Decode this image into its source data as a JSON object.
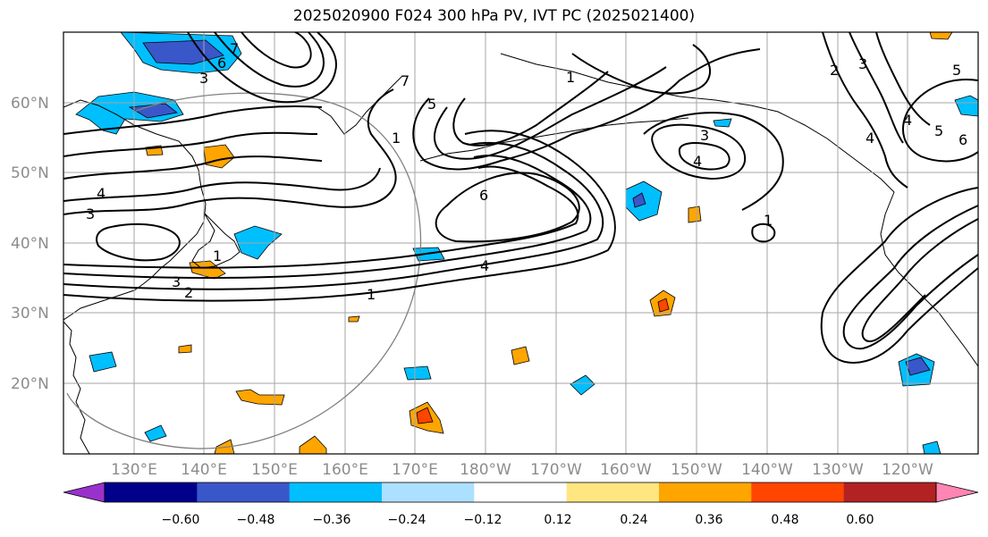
{
  "title": "2025020900 F024 300 hPa PV, IVT PC (2025021400)",
  "lat_labels": [
    "60°N",
    "50°N",
    "40°N",
    "30°N",
    "20°N"
  ],
  "lon_labels": [
    "130°E",
    "140°E",
    "150°E",
    "160°E",
    "170°E",
    "180°W",
    "170°W",
    "160°W",
    "150°W",
    "140°W",
    "130°W",
    "120°W"
  ],
  "map_extent": {
    "lon_min_E": 120,
    "lon_max_E": 250,
    "lat_min": 10,
    "lat_max": 70
  },
  "colorbar": {
    "ticks": [
      "−0.60",
      "−0.48",
      "−0.36",
      "−0.24",
      "−0.12",
      "0.12",
      "0.24",
      "0.36",
      "0.48",
      "0.60"
    ],
    "colors": [
      "#9932CC",
      "#00008B",
      "#3A57C9",
      "#00BFFF",
      "#ADE0FF",
      "#FFFFFF",
      "#FFE680",
      "#FFA500",
      "#FF4500",
      "#B22222",
      "#FF85B3"
    ],
    "extend": "both"
  },
  "contour_labels": [
    "7",
    "6",
    "3",
    "1",
    "2",
    "3",
    "4",
    "1",
    "3",
    "7",
    "5",
    "6",
    "4",
    "1",
    "3",
    "4",
    "1",
    "2",
    "3",
    "5",
    "4",
    "5",
    "6",
    "4",
    "1"
  ]
}
